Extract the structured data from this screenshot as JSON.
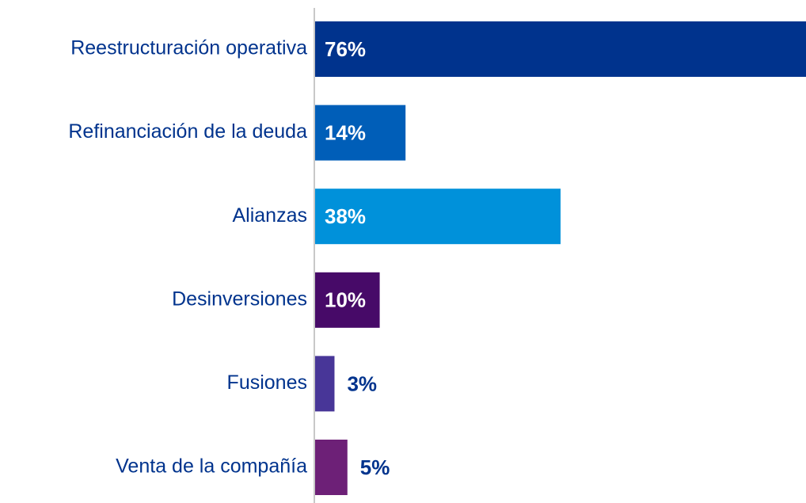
{
  "chart_data": {
    "type": "barh",
    "categories": [
      "Reestructuración operativa",
      "Refinanciación de la deuda",
      "Alianzas",
      "Desinversiones",
      "Fusiones",
      "Venta de la compañía"
    ],
    "values": [
      76,
      14,
      38,
      10,
      3,
      5
    ],
    "value_labels": [
      "76%",
      "14%",
      "38%",
      "10%",
      "3%",
      "5%"
    ],
    "colors": [
      "#00338d",
      "#005eb8",
      "#0091da",
      "#470a68",
      "#483698",
      "#6d2077"
    ],
    "xlim": [
      0,
      76
    ]
  }
}
